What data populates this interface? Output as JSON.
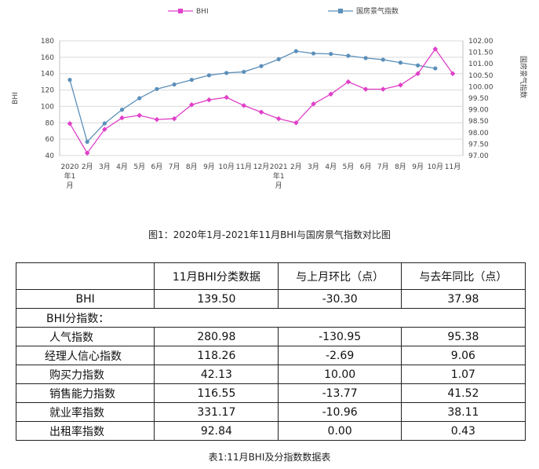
{
  "chart_data": {
    "type": "line",
    "categories": [
      "2020年1月",
      "2月",
      "3月",
      "4月",
      "5月",
      "6月",
      "7月",
      "8月",
      "9月",
      "10月",
      "11月",
      "12月",
      "2021年1月",
      "2月",
      "3月",
      "4月",
      "5月",
      "6月",
      "7月",
      "8月",
      "9月",
      "10月",
      "11月"
    ],
    "category_lines": [
      [
        "2020",
        "年1",
        "月"
      ],
      [
        "2月"
      ],
      [
        "3月"
      ],
      [
        "4月"
      ],
      [
        "5月"
      ],
      [
        "6月"
      ],
      [
        "7月"
      ],
      [
        "8月"
      ],
      [
        "9月"
      ],
      [
        "10月"
      ],
      [
        "11月"
      ],
      [
        "12月"
      ],
      [
        "2021",
        "年1",
        "月"
      ],
      [
        "2月"
      ],
      [
        "3月"
      ],
      [
        "4月"
      ],
      [
        "5月"
      ],
      [
        "6月"
      ],
      [
        "7月"
      ],
      [
        "8月"
      ],
      [
        "9月"
      ],
      [
        "10月"
      ],
      [
        "11月"
      ]
    ],
    "series": [
      {
        "name": "BHI",
        "axis": "left",
        "color": "#e040c8",
        "values": [
          79,
          43,
          72,
          86,
          89,
          84,
          85,
          102,
          108,
          111,
          101,
          93,
          85,
          80,
          103,
          115,
          130,
          121,
          121,
          126,
          140,
          170,
          140
        ]
      },
      {
        "name": "国房景气指数",
        "axis": "right",
        "color": "#5b8fb9",
        "values": [
          100.3,
          97.6,
          98.4,
          99.0,
          99.5,
          99.9,
          100.1,
          100.3,
          100.5,
          100.6,
          100.65,
          100.9,
          101.2,
          101.55,
          101.45,
          101.43,
          101.35,
          101.25,
          101.18,
          101.05,
          100.93,
          100.8,
          null
        ]
      }
    ],
    "ylabel": "BHI",
    "y2label": "国房景气指数",
    "ylim": [
      40,
      180
    ],
    "y_ticks": [
      40,
      60,
      80,
      100,
      120,
      140,
      160,
      180
    ],
    "y2lim": [
      97.0,
      102.0
    ],
    "y2_ticks": [
      "97.00",
      "97.50",
      "98.00",
      "98.50",
      "99.00",
      "99.50",
      "100.00",
      "100.50",
      "101.00",
      "101.50",
      "102.00"
    ],
    "grid": true,
    "legend_position": "top"
  },
  "figure_caption": "图1：2020年1月-2021年11月BHI与国房景气指数对比图",
  "table": {
    "headers": [
      "",
      "11月BHI分类数据",
      "与上月环比（点）",
      "与去年同比（点）"
    ],
    "bhi_row": {
      "label": "BHI",
      "values": [
        "139.50",
        "-30.30",
        "37.98"
      ]
    },
    "section_label": "BHI分指数：",
    "rows": [
      {
        "label": "人气指数",
        "values": [
          "280.98",
          "-130.95",
          "95.38"
        ]
      },
      {
        "label": "经理人信心指数",
        "values": [
          "118.26",
          "-2.69",
          "9.06"
        ]
      },
      {
        "label": "购买力指数",
        "values": [
          "42.13",
          "10.00",
          "1.07"
        ]
      },
      {
        "label": "销售能力指数",
        "values": [
          "116.55",
          "-13.77",
          "41.52"
        ]
      },
      {
        "label": "就业率指数",
        "values": [
          "331.17",
          "-10.96",
          "38.11"
        ]
      },
      {
        "label": "出租率指数",
        "values": [
          "92.84",
          "0.00",
          "0.43"
        ]
      }
    ]
  },
  "table_caption": "表1:11月BHI及分指数数据表"
}
